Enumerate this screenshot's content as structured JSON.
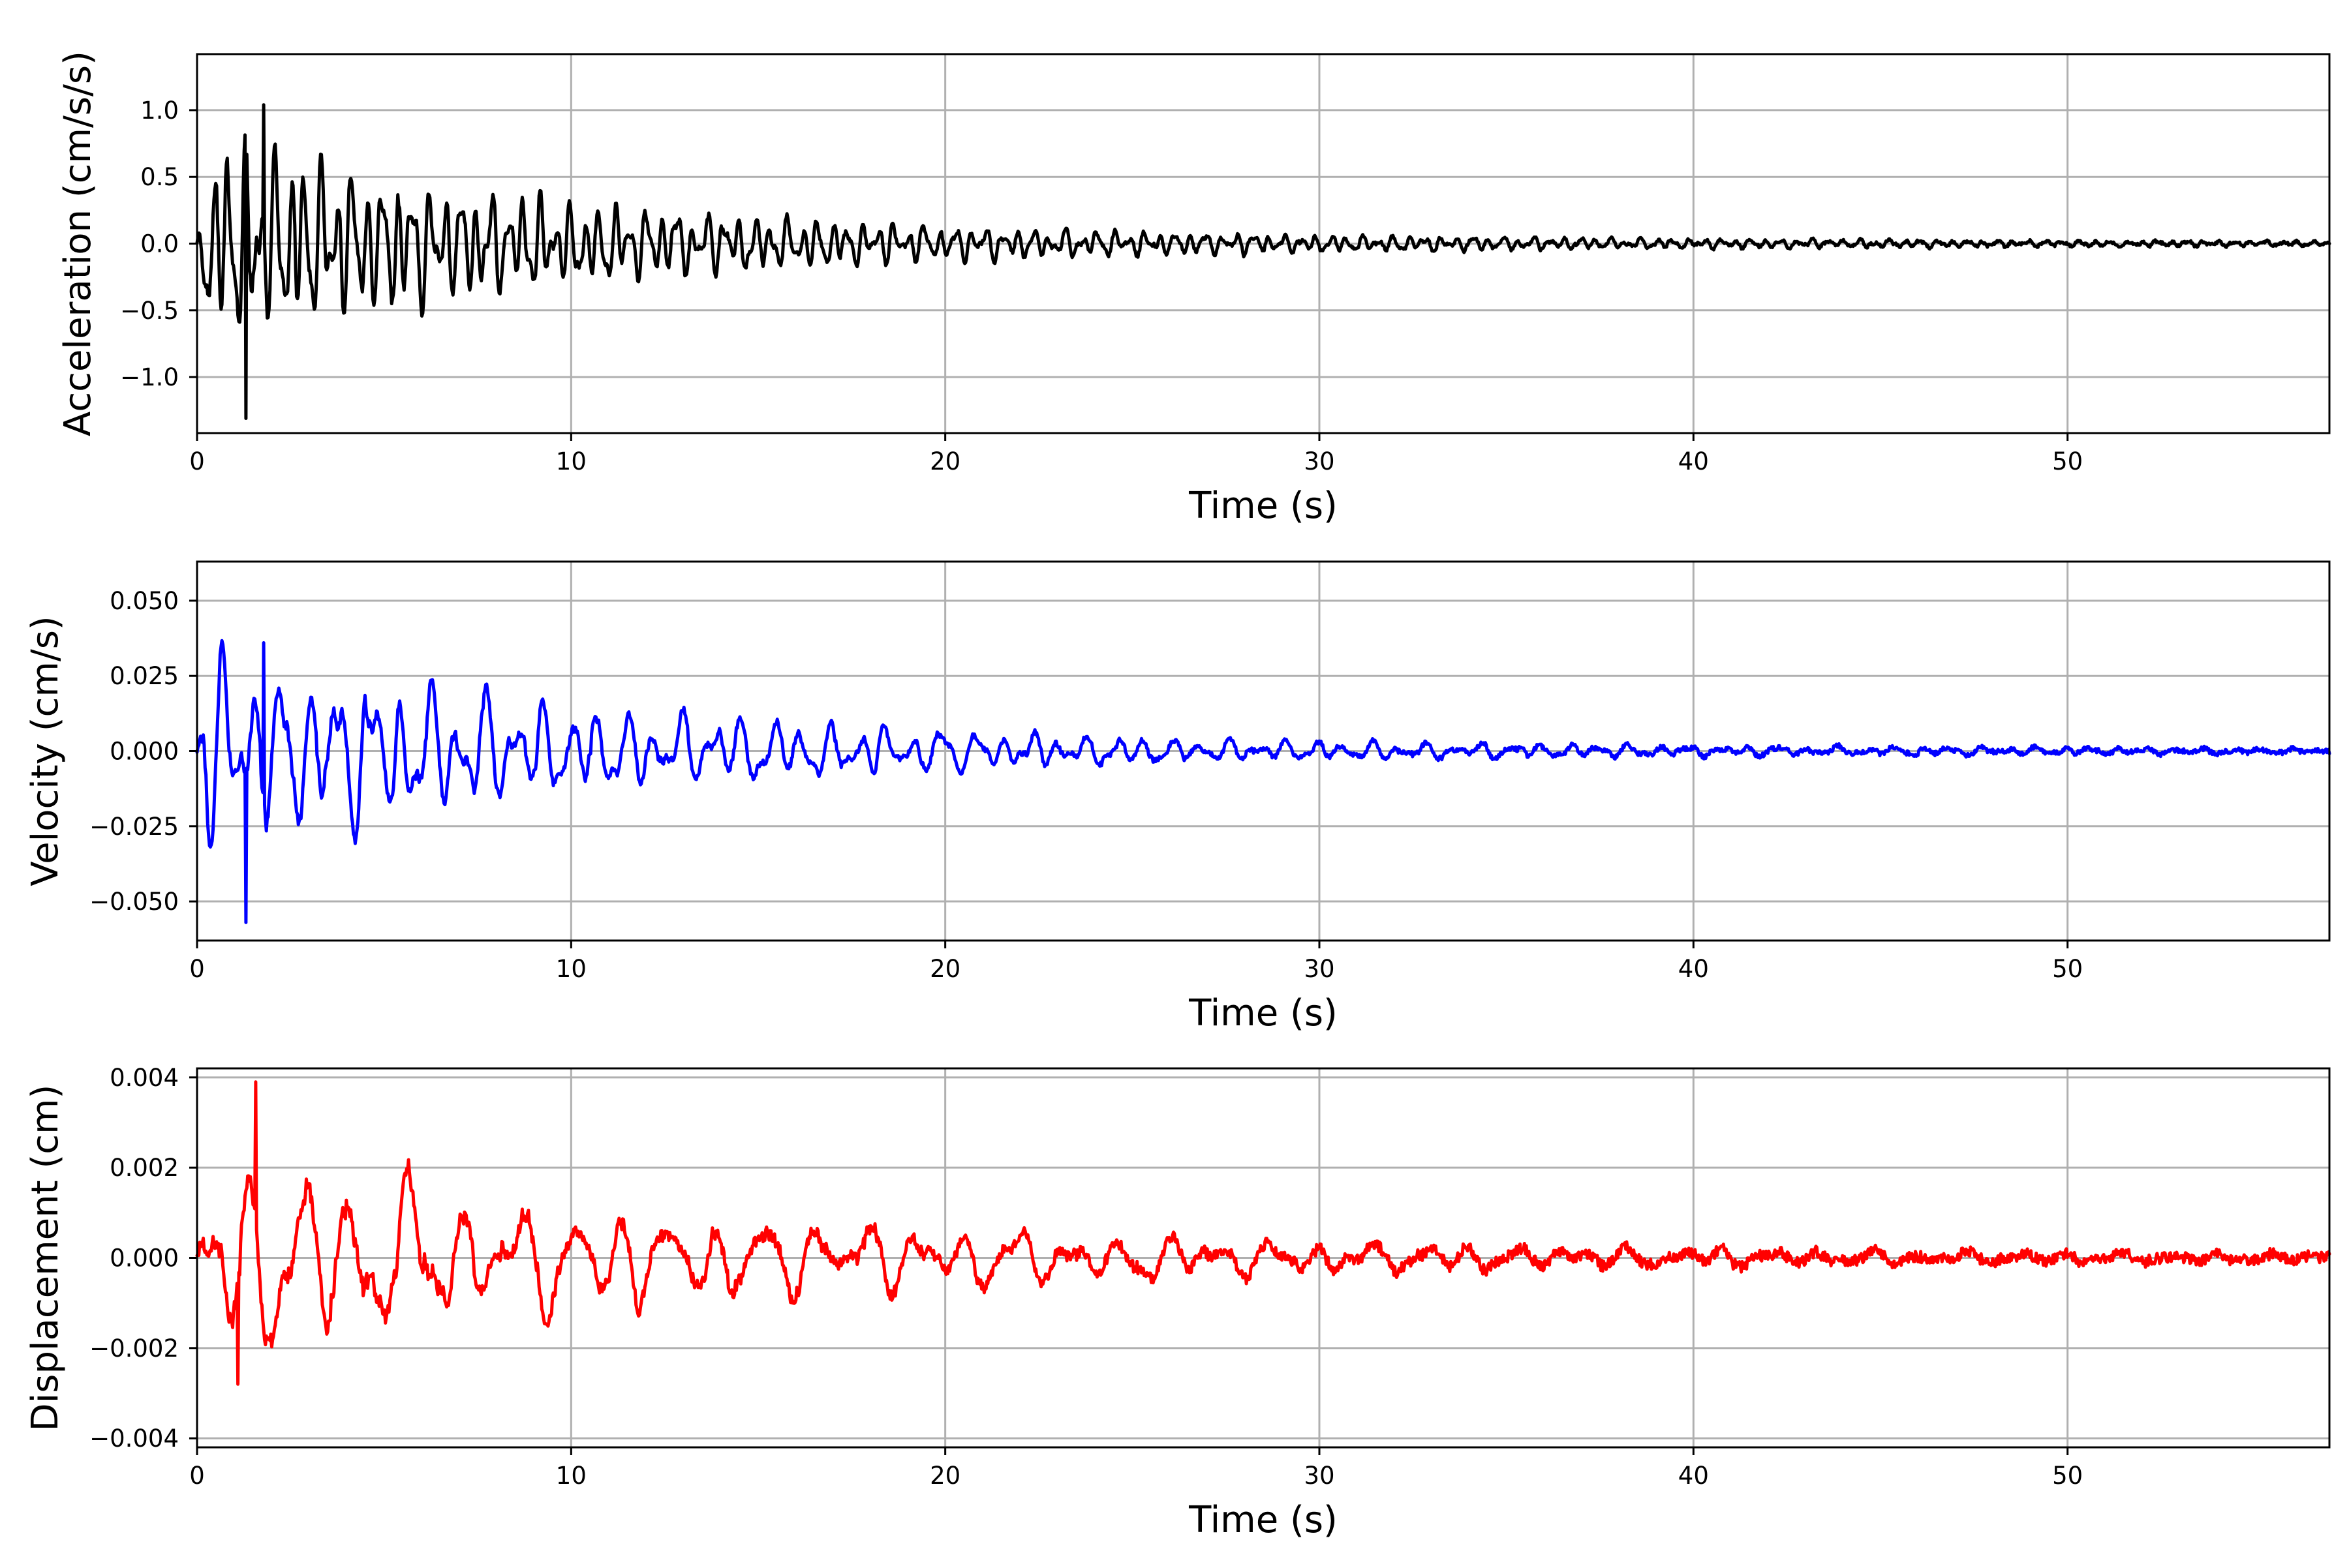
{
  "chart_data": [
    {
      "type": "line",
      "series": [
        {
          "color": "#000000"
        }
      ],
      "xlabel": "Time (s)",
      "ylabel": "Acceleration (cm/s/s)",
      "xlim": [
        0,
        57
      ],
      "ylim": [
        -1.42,
        1.42
      ],
      "xticks": [
        0,
        10,
        20,
        30,
        40,
        50
      ],
      "xtick_labels": [
        "0",
        "10",
        "20",
        "30",
        "40",
        "50"
      ],
      "yticks": [
        1.0,
        0.5,
        0.0,
        -0.5,
        -1.0
      ],
      "ytick_labels": [
        "1.0",
        "0.5",
        "0.0",
        "−0.5",
        "−1.0"
      ],
      "grid": true,
      "signal": {
        "peak_positive": 1.04,
        "peak_negative": -1.31,
        "peak_time": 1.3,
        "decay_time_constant": 9.0,
        "dominant_frequency_hz": 2.4,
        "noise_floor": 0.02
      }
    },
    {
      "type": "line",
      "series": [
        {
          "color": "#0000ff"
        }
      ],
      "xlabel": "Time (s)",
      "ylabel": "Velocity (cm/s)",
      "xlim": [
        0,
        57
      ],
      "ylim": [
        -0.063,
        0.063
      ],
      "xticks": [
        0,
        10,
        20,
        30,
        40,
        50
      ],
      "xtick_labels": [
        "0",
        "10",
        "20",
        "30",
        "40",
        "50"
      ],
      "yticks": [
        0.05,
        0.025,
        0.0,
        -0.025,
        -0.05
      ],
      "ytick_labels": [
        "0.050",
        "0.025",
        "0.000",
        "−0.025",
        "−0.050"
      ],
      "grid": true,
      "signal": {
        "peak_positive": 0.036,
        "peak_negative": -0.057,
        "peak_time": 1.3,
        "decay_time_constant": 10.0,
        "dominant_frequency_hz": 1.3,
        "noise_floor": 0.0015
      }
    },
    {
      "type": "line",
      "series": [
        {
          "color": "#ff0000"
        }
      ],
      "xlabel": "Time (s)",
      "ylabel": "Displacement (cm)",
      "xlim": [
        0,
        57
      ],
      "ylim": [
        -0.0042,
        0.0042
      ],
      "xticks": [
        0,
        10,
        20,
        30,
        40,
        50
      ],
      "xtick_labels": [
        "0",
        "10",
        "20",
        "30",
        "40",
        "50"
      ],
      "yticks": [
        0.004,
        0.002,
        0.0,
        -0.002,
        -0.004
      ],
      "ytick_labels": [
        "0.004",
        "0.002",
        "0.000",
        "−0.002",
        "−0.004"
      ],
      "grid": true,
      "signal": {
        "peak_positive": 0.0039,
        "peak_negative": -0.0028,
        "peak_time": 1.1,
        "decay_time_constant": 14.0,
        "dominant_frequency_hz": 0.75,
        "noise_floor": 0.00025
      }
    }
  ]
}
